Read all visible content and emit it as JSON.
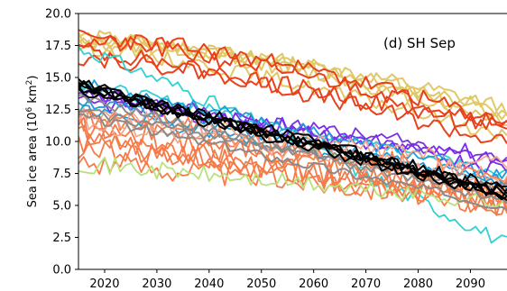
{
  "chart_data": {
    "type": "line",
    "annotation": "(d) SH Sep",
    "ylabel": "Sea ice area (10",
    "ylabel_sup": "6",
    "ylabel_unit": " km",
    "ylabel_unit_sup": "2",
    "ylabel_close": ")",
    "xlim": [
      2015,
      2097
    ],
    "ylim": [
      0,
      20
    ],
    "xticks": [
      2020,
      2030,
      2040,
      2050,
      2060,
      2070,
      2080,
      2090
    ],
    "yticks": [
      0.0,
      2.5,
      5.0,
      7.5,
      10.0,
      12.5,
      15.0,
      17.5,
      20.0
    ],
    "ytick_labels": [
      "0.0",
      "2.5",
      "5.0",
      "7.5",
      "10.0",
      "12.5",
      "15.0",
      "17.5",
      "20.0"
    ],
    "grid": false,
    "series_groups": [
      {
        "color": "#e0c868",
        "width": 2.0,
        "members": [
          {
            "start": 18.0,
            "end": 12.2,
            "curve": 1.6,
            "noise": 0.6,
            "seed": 11
          },
          {
            "start": 17.8,
            "end": 11.6,
            "curve": 1.5,
            "noise": 0.6,
            "seed": 12
          },
          {
            "start": 17.6,
            "end": 12.6,
            "curve": 1.8,
            "noise": 0.6,
            "seed": 13
          },
          {
            "start": 18.2,
            "end": 11.9,
            "curve": 1.4,
            "noise": 0.6,
            "seed": 14
          },
          {
            "start": 17.4,
            "end": 10.4,
            "curve": 1.3,
            "noise": 0.6,
            "seed": 15
          }
        ]
      },
      {
        "color": "#e8411c",
        "width": 2.0,
        "members": [
          {
            "start": 17.8,
            "end": 11.4,
            "curve": 1.4,
            "noise": 0.7,
            "seed": 21
          },
          {
            "start": 16.6,
            "end": 10.9,
            "curve": 1.3,
            "noise": 0.7,
            "seed": 22
          },
          {
            "start": 18.1,
            "end": 11.3,
            "curve": 1.6,
            "noise": 0.7,
            "seed": 23
          },
          {
            "start": 17.2,
            "end": 9.8,
            "curve": 1.2,
            "noise": 0.7,
            "seed": 24
          }
        ]
      },
      {
        "color": "#2fd2d0",
        "width": 1.8,
        "members": [
          {
            "start": 17.3,
            "end": 2.0,
            "curve": 1.1,
            "noise": 0.6,
            "seed": 31
          },
          {
            "start": 14.6,
            "end": 7.6,
            "curve": 1.0,
            "noise": 0.5,
            "seed": 32
          }
        ]
      },
      {
        "color": "#7a2ee6",
        "width": 1.8,
        "members": [
          {
            "start": 14.0,
            "end": 8.3,
            "curve": 1.0,
            "noise": 0.6,
            "seed": 41
          },
          {
            "start": 13.0,
            "end": 8.8,
            "curve": 1.2,
            "noise": 0.6,
            "seed": 42
          },
          {
            "start": 13.6,
            "end": 7.9,
            "curve": 1.0,
            "noise": 0.6,
            "seed": 43
          }
        ]
      },
      {
        "color": "#1e9bd8",
        "width": 1.8,
        "members": [
          {
            "start": 13.2,
            "end": 6.9,
            "curve": 1.0,
            "noise": 0.5,
            "seed": 51
          },
          {
            "start": 12.5,
            "end": 6.5,
            "curve": 1.0,
            "noise": 0.5,
            "seed": 52
          },
          {
            "start": 14.5,
            "end": 7.2,
            "curve": 1.1,
            "noise": 0.5,
            "seed": 53
          }
        ]
      },
      {
        "color": "#f57b48",
        "width": 1.8,
        "members": [
          {
            "start": 10.0,
            "end": 5.0,
            "curve": 1.0,
            "noise": 1.0,
            "seed": 61
          },
          {
            "start": 11.2,
            "end": 6.2,
            "curve": 1.0,
            "noise": 1.0,
            "seed": 62
          },
          {
            "start": 8.5,
            "end": 5.5,
            "curve": 1.0,
            "noise": 1.0,
            "seed": 63
          },
          {
            "start": 12.6,
            "end": 6.8,
            "curve": 1.0,
            "noise": 1.0,
            "seed": 64
          },
          {
            "start": 9.6,
            "end": 6.0,
            "curve": 1.0,
            "noise": 1.0,
            "seed": 65
          },
          {
            "start": 11.8,
            "end": 5.6,
            "curve": 1.0,
            "noise": 1.0,
            "seed": 66
          },
          {
            "start": 10.6,
            "end": 4.8,
            "curve": 1.0,
            "noise": 1.0,
            "seed": 67
          }
        ]
      },
      {
        "color": "#b8e07c",
        "width": 1.8,
        "members": [
          {
            "start": 8.3,
            "end": 5.2,
            "curve": 1.0,
            "noise": 0.7,
            "seed": 71
          }
        ]
      },
      {
        "color": "#f4a38a",
        "width": 1.6,
        "members": [
          {
            "start": 11.6,
            "end": 7.0,
            "curve": 1.0,
            "noise": 0.8,
            "seed": 81
          },
          {
            "start": 12.2,
            "end": 8.0,
            "curve": 1.0,
            "noise": 0.8,
            "seed": 82
          }
        ]
      },
      {
        "color": "#8a8a8a",
        "width": 2.0,
        "members": [
          {
            "start": 13.4,
            "end": 5.2,
            "curve": 1.0,
            "noise": 0.4,
            "seed": 91
          },
          {
            "start": 12.0,
            "end": 4.9,
            "curve": 1.0,
            "noise": 0.4,
            "seed": 92
          },
          {
            "start": 12.4,
            "end": 6.3,
            "curve": 1.0,
            "noise": 0.4,
            "seed": 93
          }
        ]
      },
      {
        "color": "#000000",
        "width": 2.0,
        "members": [
          {
            "start": 14.4,
            "end": 6.0,
            "curve": 1.0,
            "noise": 0.45,
            "seed": 101
          },
          {
            "start": 14.2,
            "end": 5.9,
            "curve": 1.0,
            "noise": 0.45,
            "seed": 102
          },
          {
            "start": 14.6,
            "end": 6.3,
            "curve": 1.0,
            "noise": 0.45,
            "seed": 103
          },
          {
            "start": 14.0,
            "end": 5.7,
            "curve": 1.0,
            "noise": 0.45,
            "seed": 104
          },
          {
            "start": 14.3,
            "end": 6.1,
            "curve": 1.0,
            "noise": 0.45,
            "seed": 105
          },
          {
            "start": 14.5,
            "end": 5.8,
            "curve": 1.0,
            "noise": 0.45,
            "seed": 106
          }
        ]
      }
    ]
  }
}
